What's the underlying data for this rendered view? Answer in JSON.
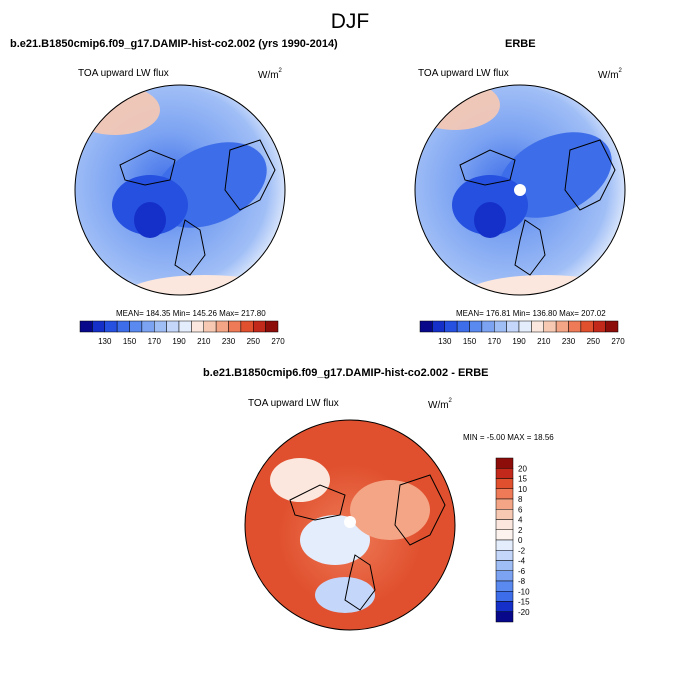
{
  "title": "DJF",
  "panels": {
    "model": {
      "header": "b.e21.B1850cmip6.f09_g17.DAMIP-hist-co2.002 (yrs 1990-2014)",
      "variable": "TOA upward LW flux",
      "units_base": "W/m",
      "units_exp": "2",
      "stats": "MEAN= 184.35   Min= 145.26   Max= 217.80"
    },
    "obs": {
      "header": "ERBE",
      "variable": "TOA upward LW flux",
      "units_base": "W/m",
      "units_exp": "2",
      "stats": "MEAN= 176.81   Min= 136.80   Max= 207.02"
    },
    "diff": {
      "header": "b.e21.B1850cmip6.f09_g17.DAMIP-hist-co2.002 - ERBE",
      "variable": "TOA upward LW flux",
      "units_base": "W/m",
      "units_exp": "2",
      "stats": "MIN =  -5.00 MAX =  18.56"
    }
  },
  "colorbar_abs": {
    "labels": [
      "130",
      "150",
      "170",
      "190",
      "210",
      "230",
      "250",
      "270"
    ],
    "colors": [
      "#08088a",
      "#1530c8",
      "#2550e0",
      "#3d6de8",
      "#5a8aef",
      "#7ca3f2",
      "#a0bef6",
      "#c4d6fa",
      "#e4edfc",
      "#fbe7dd",
      "#f7c9b2",
      "#f3a586",
      "#ee7a57",
      "#e0502e",
      "#c2291a",
      "#8c0d0a"
    ]
  },
  "colorbar_diff": {
    "labels": [
      "20",
      "15",
      "10",
      "8",
      "6",
      "4",
      "2",
      "0",
      "-2",
      "-4",
      "-6",
      "-8",
      "-10",
      "-15",
      "-20"
    ],
    "colors": [
      "#8c0d0a",
      "#c2291a",
      "#e0502e",
      "#ee7a57",
      "#f3a586",
      "#f7c9b2",
      "#fbe7dd",
      "#fdf3ee",
      "#e4edfc",
      "#c4d6fa",
      "#a0bef6",
      "#7ca3f2",
      "#5a8aef",
      "#3d6de8",
      "#1530c8",
      "#08088a"
    ]
  }
}
